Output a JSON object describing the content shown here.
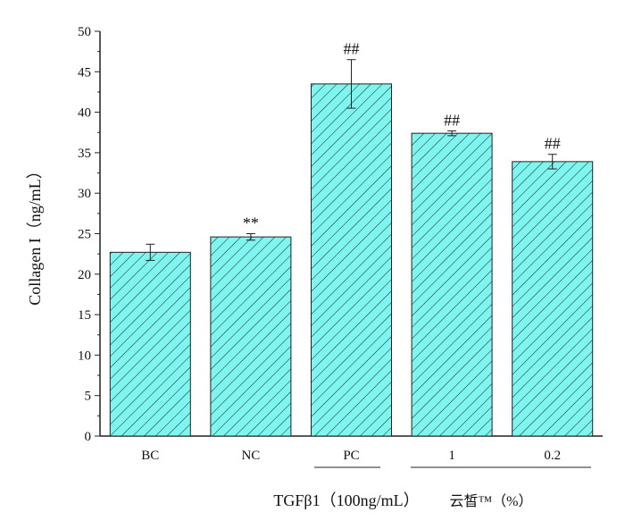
{
  "chart_data": {
    "type": "bar",
    "y_label": "Collagen I（ng/mL）",
    "categories": [
      "BC",
      "NC",
      "PC",
      "1",
      "0.2"
    ],
    "values": [
      22.7,
      24.6,
      43.5,
      37.4,
      33.9
    ],
    "errors": [
      1.0,
      0.4,
      3.0,
      0.3,
      0.9
    ],
    "annotations": [
      null,
      "**",
      "##",
      "##",
      "##"
    ],
    "group_labels": [
      "TGFβ1（100ng/mL）",
      "云皙™（%）"
    ],
    "color": "#7ef5ee",
    "ylim": [
      0,
      50
    ],
    "yticks": [
      0,
      5,
      10,
      15,
      20,
      25,
      30,
      35,
      40,
      45,
      50
    ]
  }
}
